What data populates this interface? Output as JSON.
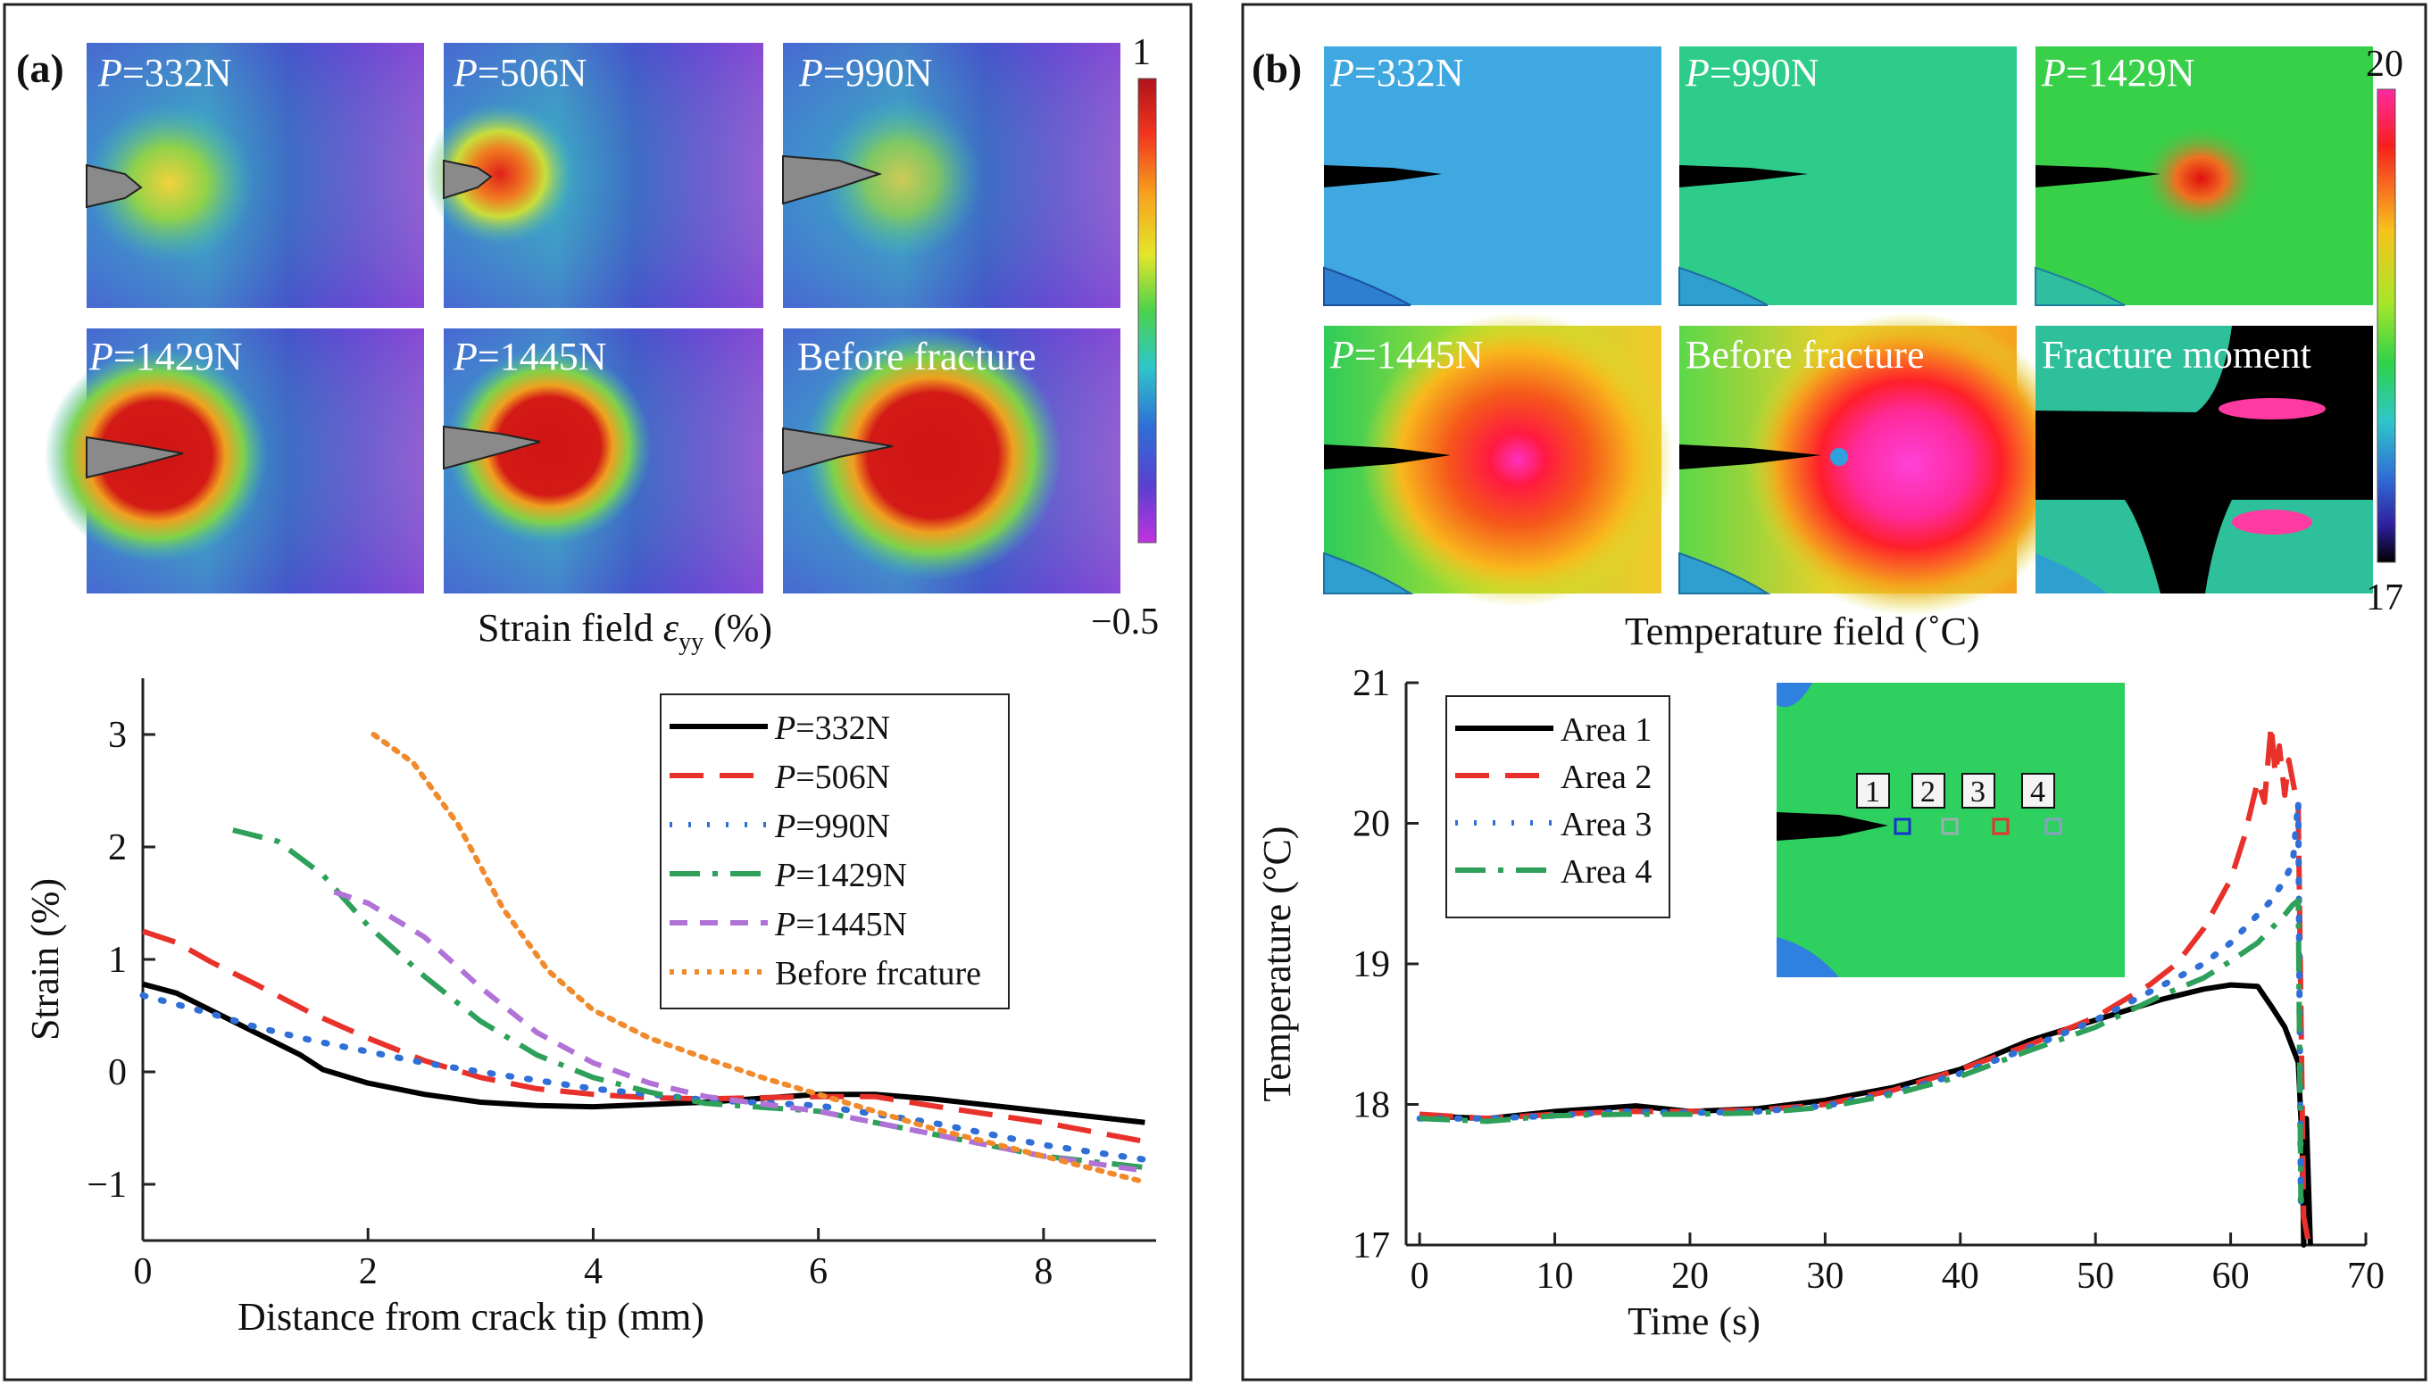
{
  "panel_a": {
    "label": "(a)",
    "field_tiles": [
      {
        "p": "P",
        "rest": "=332N"
      },
      {
        "p": "P",
        "rest": "=506N"
      },
      {
        "p": "P",
        "rest": "=990N"
      },
      {
        "p": "P",
        "rest": "=1429N"
      },
      {
        "p": "P",
        "rest": "=1445N"
      },
      {
        "p": "",
        "rest": "Before fracture"
      }
    ],
    "colorbar": {
      "max": "1",
      "min": "−0.5"
    },
    "field_caption": {
      "prefix": "Strain field ",
      "symbol": "ε",
      "sub": "yy",
      "suffix": " (%)"
    }
  },
  "panel_b": {
    "label": "(b)",
    "field_tiles": [
      {
        "p": "P",
        "rest": "=332N"
      },
      {
        "p": "P",
        "rest": "=990N"
      },
      {
        "p": "P",
        "rest": "=1429N"
      },
      {
        "p": "P",
        "rest": "=1445N"
      },
      {
        "p": "",
        "rest": "Before fracture"
      },
      {
        "p": "",
        "rest": "Fracture moment"
      }
    ],
    "colorbar": {
      "max": "20",
      "min": "17"
    },
    "field_caption": "Temperature field (˚C)",
    "inset_labels": [
      "1",
      "2",
      "3",
      "4"
    ]
  },
  "chart_data": [
    {
      "type": "line",
      "title": "",
      "xlabel": "Distance from crack tip  (mm)",
      "ylabel": "Strain  (%)",
      "xlim": [
        0,
        9
      ],
      "ylim": [
        -1.5,
        3.5
      ],
      "xticks": [
        "0",
        "2",
        "4",
        "6",
        "8"
      ],
      "yticks": [
        "−1",
        "0",
        "1",
        "2",
        "3"
      ],
      "legend_position": "top-right",
      "series": [
        {
          "name": "P=332N",
          "label_p": "P",
          "label_rest": "=332N",
          "color": "#000000",
          "x": [
            0,
            0.3,
            0.6,
            1.0,
            1.4,
            1.6,
            2,
            2.5,
            3,
            3.5,
            4,
            5,
            6,
            6.5,
            7,
            8,
            8.9
          ],
          "y": [
            0.78,
            0.7,
            0.55,
            0.35,
            0.15,
            0.02,
            -0.1,
            -0.2,
            -0.27,
            -0.3,
            -0.31,
            -0.27,
            -0.2,
            -0.2,
            -0.24,
            -0.35,
            -0.45
          ]
        },
        {
          "name": "P=506N",
          "label_p": "P",
          "label_rest": "=506N",
          "color": "#e8312a",
          "x": [
            0,
            0.3,
            0.6,
            1,
            1.5,
            2,
            2.5,
            3,
            3.5,
            4,
            4.5,
            5,
            6,
            6.5,
            7,
            8,
            8.9
          ],
          "y": [
            1.25,
            1.15,
            0.98,
            0.78,
            0.52,
            0.3,
            0.1,
            -0.05,
            -0.15,
            -0.2,
            -0.23,
            -0.24,
            -0.22,
            -0.22,
            -0.3,
            -0.45,
            -0.62
          ]
        },
        {
          "name": "P=990N",
          "label_p": "P",
          "label_rest": "=990N",
          "color": "#2f6fd6",
          "x": [
            0,
            0.3,
            0.6,
            1,
            1.5,
            2,
            2.5,
            3,
            4,
            5,
            6,
            7,
            8,
            8.9
          ],
          "y": [
            0.68,
            0.6,
            0.52,
            0.4,
            0.28,
            0.18,
            0.08,
            0,
            -0.15,
            -0.25,
            -0.3,
            -0.45,
            -0.65,
            -0.78
          ]
        },
        {
          "name": "P=1429N",
          "label_p": "P",
          "label_rest": "=1429N",
          "color": "#2ea05a",
          "x": [
            0.8,
            1.2,
            1.6,
            2,
            2.5,
            3,
            3.5,
            4,
            4.5,
            5,
            6,
            7,
            8,
            8.9
          ],
          "y": [
            2.15,
            2.05,
            1.75,
            1.3,
            0.85,
            0.45,
            0.15,
            -0.05,
            -0.18,
            -0.28,
            -0.35,
            -0.55,
            -0.75,
            -0.85
          ]
        },
        {
          "name": "P=1445N",
          "label_p": "P",
          "label_rest": "=1445N",
          "color": "#b072d6",
          "x": [
            1.7,
            2,
            2.5,
            3,
            3.5,
            4,
            4.5,
            5,
            6,
            7,
            8,
            8.9
          ],
          "y": [
            1.6,
            1.5,
            1.2,
            0.75,
            0.35,
            0.08,
            -0.1,
            -0.22,
            -0.35,
            -0.55,
            -0.75,
            -0.88
          ]
        },
        {
          "name": "Before frcature",
          "label_p": "",
          "label_rest": "Before frcature",
          "color": "#f08a2b",
          "x": [
            2.05,
            2.4,
            2.8,
            3.2,
            3.6,
            4,
            4.5,
            5,
            5.5,
            6,
            7,
            8,
            8.9
          ],
          "y": [
            3.0,
            2.75,
            2.2,
            1.45,
            0.9,
            0.55,
            0.3,
            0.12,
            -0.05,
            -0.2,
            -0.5,
            -0.75,
            -0.98
          ]
        }
      ]
    },
    {
      "type": "line",
      "title": "",
      "xlabel": "Time (s)",
      "ylabel": "Temperature  (°C)",
      "xlim": [
        -1,
        70
      ],
      "ylim": [
        17,
        21
      ],
      "xticks": [
        "0",
        "10",
        "20",
        "30",
        "40",
        "50",
        "60",
        "70"
      ],
      "yticks": [
        "17",
        "18",
        "19",
        "20",
        "21"
      ],
      "legend_position": "top-left",
      "series": [
        {
          "name": "Area 1",
          "color": "#000000",
          "x": [
            0,
            5,
            10,
            16,
            20,
            25,
            30,
            35,
            40,
            45,
            50,
            55,
            58,
            60,
            62,
            63,
            64,
            64.6,
            65,
            65.3,
            65.4,
            65.6,
            65.9
          ],
          "y": [
            17.92,
            17.9,
            17.95,
            17.99,
            17.95,
            17.97,
            18.03,
            18.12,
            18.25,
            18.45,
            18.6,
            18.75,
            18.82,
            18.85,
            18.84,
            18.7,
            18.55,
            18.4,
            18.3,
            17.7,
            17.0,
            17.9,
            17.0
          ]
        },
        {
          "name": "Area 2",
          "color": "#e8312a",
          "x": [
            0,
            5,
            10,
            15,
            20,
            25,
            30,
            35,
            40,
            45,
            50,
            54,
            56,
            58,
            60,
            61,
            62,
            62.5,
            63,
            63.3,
            63.6,
            64,
            64.3,
            64.6,
            65,
            65.1,
            65.4,
            65.8
          ],
          "y": [
            17.93,
            17.9,
            17.93,
            17.95,
            17.95,
            17.96,
            18.0,
            18.1,
            18.25,
            18.42,
            18.62,
            18.85,
            19.0,
            19.25,
            19.6,
            19.9,
            20.3,
            20.15,
            20.7,
            20.35,
            20.55,
            20.2,
            20.45,
            20.3,
            20.1,
            19.4,
            17.2,
            17.0
          ]
        },
        {
          "name": "Area 3",
          "color": "#2f6fd6",
          "x": [
            0,
            5,
            10,
            15,
            20,
            25,
            30,
            35,
            40,
            45,
            50,
            55,
            58,
            60,
            62,
            63,
            64,
            64.6,
            65,
            65.2
          ],
          "y": [
            17.9,
            17.9,
            17.92,
            17.95,
            17.94,
            17.95,
            17.99,
            18.08,
            18.22,
            18.4,
            18.6,
            18.85,
            19.0,
            19.15,
            19.35,
            19.45,
            19.6,
            19.72,
            20.15,
            17.3
          ]
        },
        {
          "name": "Area 4",
          "color": "#2ea05a",
          "x": [
            0,
            5,
            10,
            15,
            20,
            25,
            30,
            35,
            40,
            45,
            50,
            55,
            58,
            60,
            62,
            63,
            64,
            64.6,
            65,
            65.2
          ],
          "y": [
            17.9,
            17.88,
            17.92,
            17.93,
            17.93,
            17.94,
            17.98,
            18.07,
            18.2,
            18.38,
            18.55,
            18.78,
            18.9,
            19.02,
            19.15,
            19.25,
            19.35,
            19.42,
            19.45,
            17.3
          ]
        }
      ]
    }
  ]
}
